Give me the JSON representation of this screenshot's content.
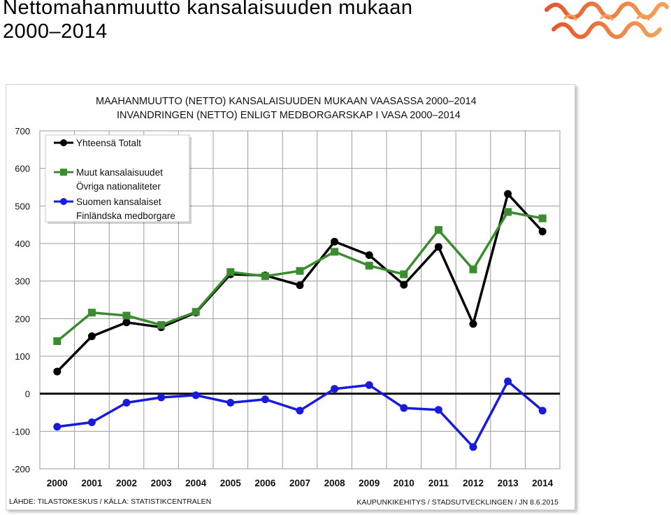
{
  "slide": {
    "title_line1": "Nettomahanmuutto kansalaisuuden mukaan",
    "title_line2": "2000–2014"
  },
  "logo": {
    "icon": "wave-logo",
    "colors": [
      "#e4572e",
      "#f4a259"
    ]
  },
  "chart_data": {
    "type": "line",
    "title": "MAAHANMUUTTO (NETTO) KANSALAISUUDEN MUKAAN VAASASSA 2000–2014",
    "subtitle": "INVANDRINGEN (NETTO) ENLIGT MEDBORGARSKAP I VASA 2000–2014",
    "xlabel": "",
    "ylabel": "",
    "categories": [
      "2000",
      "2001",
      "2002",
      "2003",
      "2004",
      "2005",
      "2006",
      "2007",
      "2008",
      "2009",
      "2010",
      "2011",
      "2012",
      "2013",
      "2014"
    ],
    "ylim": [
      -200,
      700
    ],
    "yticks": [
      700,
      600,
      500,
      400,
      300,
      200,
      100,
      0,
      -100,
      -200
    ],
    "grid": true,
    "legend_position": "top-left",
    "series": [
      {
        "name": "Yhteensä Totalt",
        "legend_lines": [
          "Yhteensä Totalt"
        ],
        "color": "#000000",
        "marker": "circle",
        "values": [
          59,
          153,
          190,
          177,
          216,
          318,
          315,
          289,
          405,
          369,
          290,
          391,
          186,
          532,
          432
        ]
      },
      {
        "name": "Muut kansalaisuudet Övriga nationaliteter",
        "legend_lines": [
          "Muut kansalaisuudet",
          "Övriga nationaliteter"
        ],
        "color": "#3a8c2e",
        "marker": "square",
        "values": [
          140,
          216,
          208,
          183,
          218,
          324,
          313,
          327,
          378,
          341,
          318,
          436,
          331,
          484,
          467
        ]
      },
      {
        "name": "Suomen kansalaiset Finländska medborgare",
        "legend_lines": [
          "Suomen kansalaiset",
          "Finländska medborgare"
        ],
        "color": "#1a1adc",
        "marker": "circle",
        "values": [
          -88,
          -76,
          -24,
          -10,
          -4,
          -24,
          -15,
          -45,
          13,
          23,
          -38,
          -43,
          -142,
          33,
          -45
        ]
      }
    ],
    "source_left": "LÄHDE: TILASTOKESKUS / KÄLLA: STATISTIKCENTRALEN",
    "source_right": "KAUPUNKIKEHITYS  / STADSUTVECKLINGEN / JN 8.6.2015"
  }
}
